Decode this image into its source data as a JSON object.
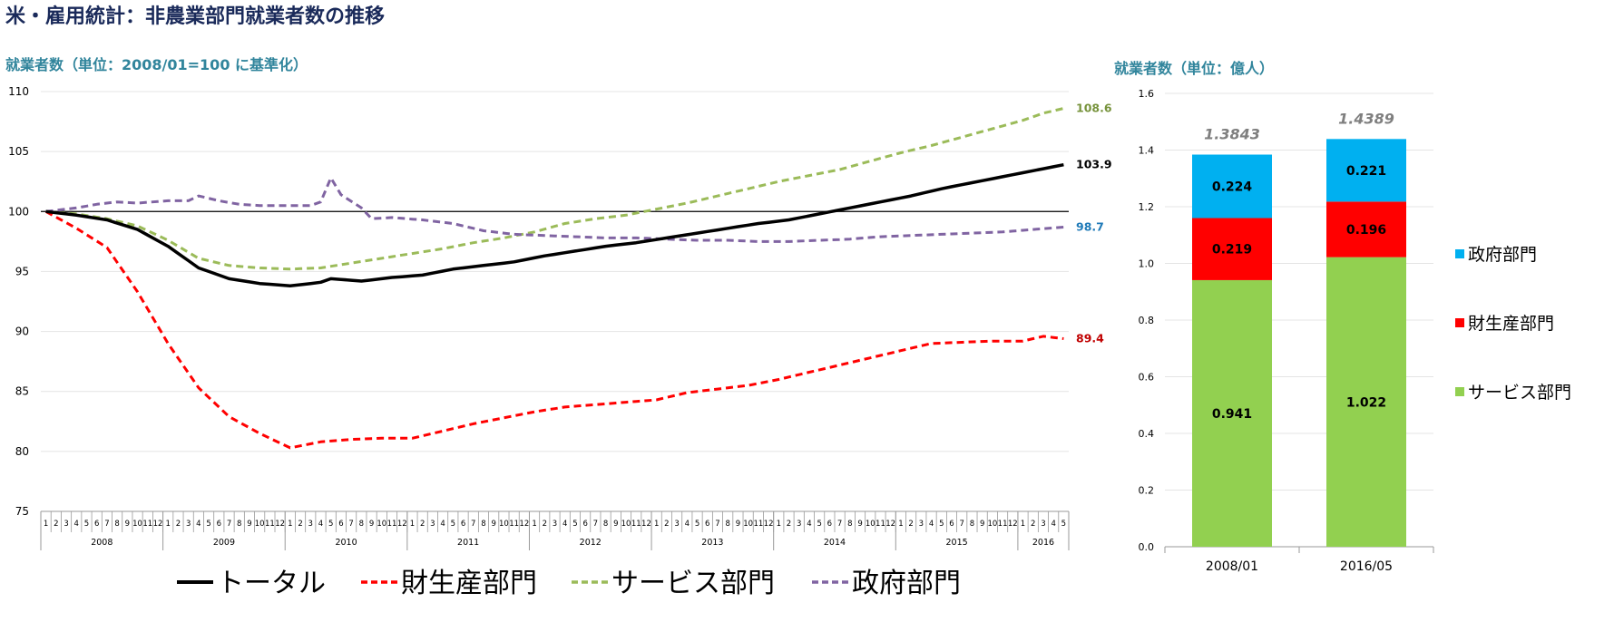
{
  "page": {
    "title": "米・雇用統計：非農業部門就業者数の推移",
    "left_subtitle": "就業者数（単位：2008/01=100 に基準化）",
    "right_subtitle": "就業者数（単位：億人）"
  },
  "chart_data": [
    {
      "type": "line",
      "ylim": [
        75,
        110
      ],
      "yticks": [
        75,
        80,
        85,
        90,
        95,
        100,
        105,
        110
      ],
      "reference_line": 100,
      "x_months": [
        "1",
        "2",
        "3",
        "4",
        "5",
        "6",
        "7",
        "8",
        "9",
        "10",
        "11",
        "12"
      ],
      "x_years": [
        {
          "year": "2008",
          "months": 12
        },
        {
          "year": "2009",
          "months": 12
        },
        {
          "year": "2010",
          "months": 12
        },
        {
          "year": "2011",
          "months": 12
        },
        {
          "year": "2012",
          "months": 12
        },
        {
          "year": "2013",
          "months": 12
        },
        {
          "year": "2014",
          "months": 12
        },
        {
          "year": "2015",
          "months": 12
        },
        {
          "year": "2016",
          "months": 5
        }
      ],
      "series": [
        {
          "name": "トータル",
          "color": "#000000",
          "dash": "solid",
          "end_label": "103.9",
          "anchors": [
            [
              0,
              100
            ],
            [
              3,
              99.7
            ],
            [
              6,
              99.3
            ],
            [
              9,
              98.5
            ],
            [
              12,
              97.1
            ],
            [
              15,
              95.3
            ],
            [
              18,
              94.4
            ],
            [
              21,
              94.0
            ],
            [
              24,
              93.8
            ],
            [
              27,
              94.1
            ],
            [
              28,
              94.4
            ],
            [
              31,
              94.2
            ],
            [
              34,
              94.5
            ],
            [
              37,
              94.7
            ],
            [
              40,
              95.2
            ],
            [
              43,
              95.5
            ],
            [
              46,
              95.8
            ],
            [
              49,
              96.3
            ],
            [
              52,
              96.7
            ],
            [
              55,
              97.1
            ],
            [
              58,
              97.4
            ],
            [
              61,
              97.8
            ],
            [
              64,
              98.2
            ],
            [
              67,
              98.6
            ],
            [
              70,
              99.0
            ],
            [
              73,
              99.3
            ],
            [
              76,
              99.8
            ],
            [
              79,
              100.3
            ],
            [
              82,
              100.8
            ],
            [
              85,
              101.3
            ],
            [
              88,
              101.9
            ],
            [
              91,
              102.4
            ],
            [
              94,
              102.9
            ],
            [
              97,
              103.4
            ],
            [
              100,
              103.9
            ]
          ]
        },
        {
          "name": "財生産部門",
          "color": "#ff0000",
          "dash": "dashed",
          "end_label": "89.4",
          "anchors": [
            [
              0,
              100
            ],
            [
              3,
              98.6
            ],
            [
              6,
              97.0
            ],
            [
              9,
              93.3
            ],
            [
              12,
              89.0
            ],
            [
              15,
              85.3
            ],
            [
              18,
              82.9
            ],
            [
              21,
              81.5
            ],
            [
              24,
              80.3
            ],
            [
              27,
              80.8
            ],
            [
              30,
              81.0
            ],
            [
              33,
              81.1
            ],
            [
              36,
              81.1
            ],
            [
              39,
              81.7
            ],
            [
              42,
              82.3
            ],
            [
              45,
              82.8
            ],
            [
              48,
              83.3
            ],
            [
              51,
              83.7
            ],
            [
              54,
              83.9
            ],
            [
              57,
              84.1
            ],
            [
              60,
              84.3
            ],
            [
              63,
              84.9
            ],
            [
              66,
              85.2
            ],
            [
              69,
              85.5
            ],
            [
              72,
              86.0
            ],
            [
              75,
              86.6
            ],
            [
              78,
              87.2
            ],
            [
              81,
              87.8
            ],
            [
              84,
              88.4
            ],
            [
              87,
              89.0
            ],
            [
              90,
              89.1
            ],
            [
              93,
              89.2
            ],
            [
              96,
              89.2
            ],
            [
              98,
              89.6
            ],
            [
              100,
              89.4
            ]
          ]
        },
        {
          "name": "サービス部門",
          "color": "#9bbb59",
          "dash": "dashed",
          "end_label": "108.6",
          "anchors": [
            [
              0,
              100
            ],
            [
              3,
              99.8
            ],
            [
              6,
              99.4
            ],
            [
              9,
              98.8
            ],
            [
              12,
              97.6
            ],
            [
              15,
              96.1
            ],
            [
              18,
              95.5
            ],
            [
              21,
              95.3
            ],
            [
              24,
              95.2
            ],
            [
              27,
              95.3
            ],
            [
              30,
              95.7
            ],
            [
              33,
              96.1
            ],
            [
              36,
              96.5
            ],
            [
              39,
              96.9
            ],
            [
              42,
              97.4
            ],
            [
              45,
              97.8
            ],
            [
              48,
              98.3
            ],
            [
              51,
              99.0
            ],
            [
              54,
              99.4
            ],
            [
              57,
              99.7
            ],
            [
              60,
              100.2
            ],
            [
              63,
              100.7
            ],
            [
              66,
              101.3
            ],
            [
              69,
              101.9
            ],
            [
              72,
              102.5
            ],
            [
              75,
              103.0
            ],
            [
              78,
              103.5
            ],
            [
              81,
              104.2
            ],
            [
              84,
              104.9
            ],
            [
              87,
              105.5
            ],
            [
              90,
              106.2
            ],
            [
              93,
              106.9
            ],
            [
              96,
              107.6
            ],
            [
              98,
              108.2
            ],
            [
              100,
              108.6
            ]
          ]
        },
        {
          "name": "政府部門",
          "color": "#8064a2",
          "dash": "dashed",
          "end_label": "98.7",
          "anchors": [
            [
              0,
              100
            ],
            [
              3,
              100.3
            ],
            [
              5,
              100.6
            ],
            [
              7,
              100.8
            ],
            [
              9,
              100.7
            ],
            [
              12,
              100.9
            ],
            [
              14,
              100.9
            ],
            [
              15,
              101.3
            ],
            [
              17,
              100.9
            ],
            [
              19,
              100.6
            ],
            [
              21,
              100.5
            ],
            [
              23,
              100.5
            ],
            [
              26,
              100.5
            ],
            [
              27,
              100.8
            ],
            [
              28,
              102.8
            ],
            [
              29,
              101.4
            ],
            [
              31,
              100.3
            ],
            [
              32,
              99.4
            ],
            [
              34,
              99.5
            ],
            [
              37,
              99.3
            ],
            [
              40,
              99.0
            ],
            [
              43,
              98.4
            ],
            [
              46,
              98.1
            ],
            [
              49,
              98.0
            ],
            [
              52,
              97.9
            ],
            [
              55,
              97.8
            ],
            [
              58,
              97.8
            ],
            [
              61,
              97.7
            ],
            [
              64,
              97.6
            ],
            [
              67,
              97.6
            ],
            [
              70,
              97.5
            ],
            [
              73,
              97.5
            ],
            [
              76,
              97.6
            ],
            [
              79,
              97.7
            ],
            [
              82,
              97.9
            ],
            [
              85,
              98.0
            ],
            [
              88,
              98.1
            ],
            [
              91,
              98.2
            ],
            [
              94,
              98.3
            ],
            [
              97,
              98.5
            ],
            [
              100,
              98.7
            ]
          ]
        }
      ]
    },
    {
      "type": "bar",
      "stacked": true,
      "categories": [
        "2008/01",
        "2016/05"
      ],
      "ylim": [
        0,
        1.6
      ],
      "yticks": [
        "0.0",
        "0.2",
        "0.4",
        "0.6",
        "0.8",
        "1.0",
        "1.2",
        "1.4",
        "1.6"
      ],
      "totals": [
        "1.3843",
        "1.4389"
      ],
      "series": [
        {
          "name": "サービス部門",
          "color": "#92d050",
          "values": [
            0.941,
            1.022
          ],
          "labels": [
            "0.941",
            "1.022"
          ]
        },
        {
          "name": "財生産部門",
          "color": "#ff0000",
          "values": [
            0.219,
            0.196
          ],
          "labels": [
            "0.219",
            "0.196"
          ]
        },
        {
          "name": "政府部門",
          "color": "#00b0f0",
          "values": [
            0.224,
            0.221
          ],
          "labels": [
            "0.224",
            "0.221"
          ]
        }
      ],
      "legend": [
        "政府部門",
        "財生産部門",
        "サービス部門"
      ]
    }
  ]
}
